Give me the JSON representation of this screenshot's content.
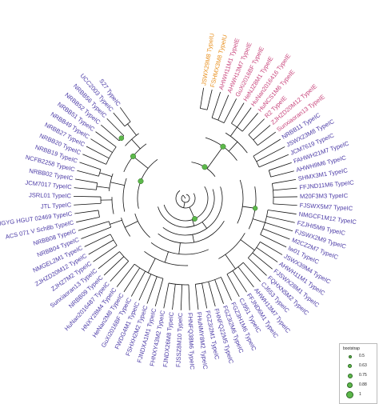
{
  "tree": {
    "colors": {
      "branch": "#111111",
      "support_fill": "#5cb84a",
      "support_stroke": "#2e6a25",
      "typeIC": "#4b3aa6",
      "typeIE": "#c8457c",
      "typeIU": "#e8901f"
    },
    "leaves": [
      {
        "label": "S27 TypeIC",
        "group": "IC"
      },
      {
        "label": "UCC2003 TypeIC",
        "group": "IC"
      },
      {
        "label": "NRBB56 TypeIC",
        "group": "IC"
      },
      {
        "label": "NRBB52 TypeIC",
        "group": "IC"
      },
      {
        "label": "NRBB51 TypeIC",
        "group": "IC"
      },
      {
        "label": "NRBB49 TypeIC",
        "group": "IC"
      },
      {
        "label": "NRBB27 TypeIC",
        "group": "IC"
      },
      {
        "label": "NRBB20 TypeIC",
        "group": "IC"
      },
      {
        "label": "NRBB19 TypeIC",
        "group": "IC"
      },
      {
        "label": "NCFB2258 TypeIC",
        "group": "IC"
      },
      {
        "label": "NRBB02 TypeIC",
        "group": "IC"
      },
      {
        "label": "JCM7017 TypeIC",
        "group": "IC"
      },
      {
        "label": "JSRL01 TypeIC",
        "group": "IC"
      },
      {
        "label": "JTL TypeIC",
        "group": "IC"
      },
      {
        "label": "MGYG HGUT 02469 TypeIC",
        "group": "IC"
      },
      {
        "label": "ACS 071 V Sch8b TypeIC",
        "group": "IC"
      },
      {
        "label": "NRBB08 TypeIC",
        "group": "IC"
      },
      {
        "label": "NRBB04 TypeIC",
        "group": "IC"
      },
      {
        "label": "NMGEL2M1 TypeIC",
        "group": "IC"
      },
      {
        "label": "ZJHZD20M12 TypeIC",
        "group": "IC"
      },
      {
        "label": "ZJHZ7M2 TypeIC",
        "group": "IC"
      },
      {
        "label": "Sunxiaoran13 TypeIC",
        "group": "IC"
      },
      {
        "label": "NRBB09 TypeIC",
        "group": "IC"
      },
      {
        "label": "HuNan2016487 TypeIC",
        "group": "IC"
      },
      {
        "label": "HNXY28M4 TypeIC",
        "group": "IC"
      },
      {
        "label": "HeNan2M8 TypeIC",
        "group": "IC"
      },
      {
        "label": "GuXi2016BF TypeIC",
        "group": "IC"
      },
      {
        "label": "FWDG4M1 TypeIC",
        "group": "IC"
      },
      {
        "label": "FSHXH2M2 TypeIC",
        "group": "IC"
      },
      {
        "label": "FJNDXA1M1 TypeIC",
        "group": "IC"
      },
      {
        "label": "FHNXY43M2 TypeIC",
        "group": "IC"
      },
      {
        "label": "FJNDX26M8 TypeIC",
        "group": "IC"
      },
      {
        "label": "FJSSZ8M10 TypeIC",
        "group": "IC"
      },
      {
        "label": "FHNFQ38M6 TypeIC",
        "group": "IC"
      },
      {
        "label": "FHuNMY8M2 TypeIC",
        "group": "IC"
      },
      {
        "label": "FGZ3I2M1 TypeIC",
        "group": "IC"
      },
      {
        "label": "FHNFQ22M5 TypeIC",
        "group": "IC"
      },
      {
        "label": "FGZ3I2M6 TypeIC",
        "group": "IC"
      },
      {
        "label": "FGZ3H1M6 TypeIC",
        "group": "IC"
      },
      {
        "label": "CJ951 TypeIC",
        "group": "IC"
      },
      {
        "label": "FFJND6M1 TypeIC",
        "group": "IC"
      },
      {
        "label": "AHWH13M7 TypeIC",
        "group": "IC"
      },
      {
        "label": "CJ653 TypeIC",
        "group": "IC"
      },
      {
        "label": "FQHXN5M2 TypeIC",
        "group": "IC"
      },
      {
        "label": "FJSWX28M1 TypeIC",
        "group": "IC"
      },
      {
        "label": "AHWH11M1 TypeIC",
        "group": "IC"
      },
      {
        "label": "JSWX39M4 TypeIC",
        "group": "IC"
      },
      {
        "label": "lw01 TypeIC",
        "group": "IC"
      },
      {
        "label": "M2CZ2M7 TypeIC",
        "group": "IC"
      },
      {
        "label": "FJSWX2M9 TypeIC",
        "group": "IC"
      },
      {
        "label": "FZJHI5M9 TypeIC",
        "group": "IC"
      },
      {
        "label": "NMGCF1M12 TypeIC",
        "group": "IC"
      },
      {
        "label": "FJSWX5M7 TypeIC",
        "group": "IC"
      },
      {
        "label": "M20F3M3 TypeIC",
        "group": "IC"
      },
      {
        "label": "FFJND11M6 TypeIC",
        "group": "IC"
      },
      {
        "label": "SHMX3M1 TypeIC",
        "group": "IC"
      },
      {
        "label": "AHWH9M6 TypeIC",
        "group": "IC"
      },
      {
        "label": "FAHWH21M7 TypeIC",
        "group": "IC"
      },
      {
        "label": "JCM7619 TypeIC",
        "group": "IC"
      },
      {
        "label": "JSWX23M8 TypeIC",
        "group": "IC"
      },
      {
        "label": "NRBB11 TypeIC",
        "group": "IC"
      },
      {
        "label": "Sunxiaoran13 TypeIE",
        "group": "IE"
      },
      {
        "label": "ZJHZD20M12 TypeIE",
        "group": "IE"
      },
      {
        "label": "R2 TypeIE",
        "group": "IE"
      },
      {
        "label": "HuNCS1M6 TypeIE",
        "group": "IE"
      },
      {
        "label": "HuNan2016416 TypeIE",
        "group": "IE"
      },
      {
        "label": "HeNJZ8M1 TypeIE",
        "group": "IE"
      },
      {
        "label": "GuXi2016BF TypeIE",
        "group": "IE"
      },
      {
        "label": "AHWH13M7 TypeIE",
        "group": "IE"
      },
      {
        "label": "AHWH11M1 TypeIE",
        "group": "IE"
      },
      {
        "label": "FSHMX3M8 TypeIU",
        "group": "IU"
      },
      {
        "label": "JSWX29M8 TypeIU",
        "group": "IU"
      }
    ]
  },
  "legend": {
    "title": "bootstrap",
    "items": [
      {
        "label": "0.5",
        "value": 0.5
      },
      {
        "label": "0.63",
        "value": 0.63
      },
      {
        "label": "0.75",
        "value": 0.75
      },
      {
        "label": "0.88",
        "value": 0.88
      },
      {
        "label": "1",
        "value": 1
      }
    ]
  }
}
